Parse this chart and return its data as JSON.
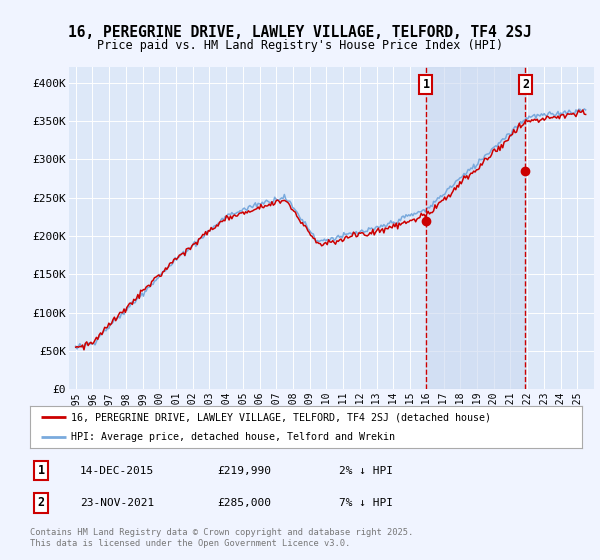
{
  "title_line1": "16, PEREGRINE DRIVE, LAWLEY VILLAGE, TELFORD, TF4 2SJ",
  "title_line2": "Price paid vs. HM Land Registry's House Price Index (HPI)",
  "ylim": [
    0,
    420000
  ],
  "yticks": [
    0,
    50000,
    100000,
    150000,
    200000,
    250000,
    300000,
    350000,
    400000
  ],
  "ytick_labels": [
    "£0",
    "£50K",
    "£100K",
    "£150K",
    "£200K",
    "£250K",
    "£300K",
    "£350K",
    "£400K"
  ],
  "bg_color": "#f0f4ff",
  "plot_bg": "#dde8f8",
  "shade_color": "#ccd9f0",
  "hpi_color": "#7aaadd",
  "price_color": "#cc0000",
  "marker1_year": 2015.95,
  "marker1_price": 219990,
  "marker2_year": 2021.9,
  "marker2_price": 285000,
  "legend_house_label": "16, PEREGRINE DRIVE, LAWLEY VILLAGE, TELFORD, TF4 2SJ (detached house)",
  "legend_hpi_label": "HPI: Average price, detached house, Telford and Wrekin",
  "annotation1_date": "14-DEC-2015",
  "annotation1_price": "£219,990",
  "annotation1_note": "2% ↓ HPI",
  "annotation2_date": "23-NOV-2021",
  "annotation2_price": "£285,000",
  "annotation2_note": "7% ↓ HPI",
  "footer": "Contains HM Land Registry data © Crown copyright and database right 2025.\nThis data is licensed under the Open Government Licence v3.0."
}
